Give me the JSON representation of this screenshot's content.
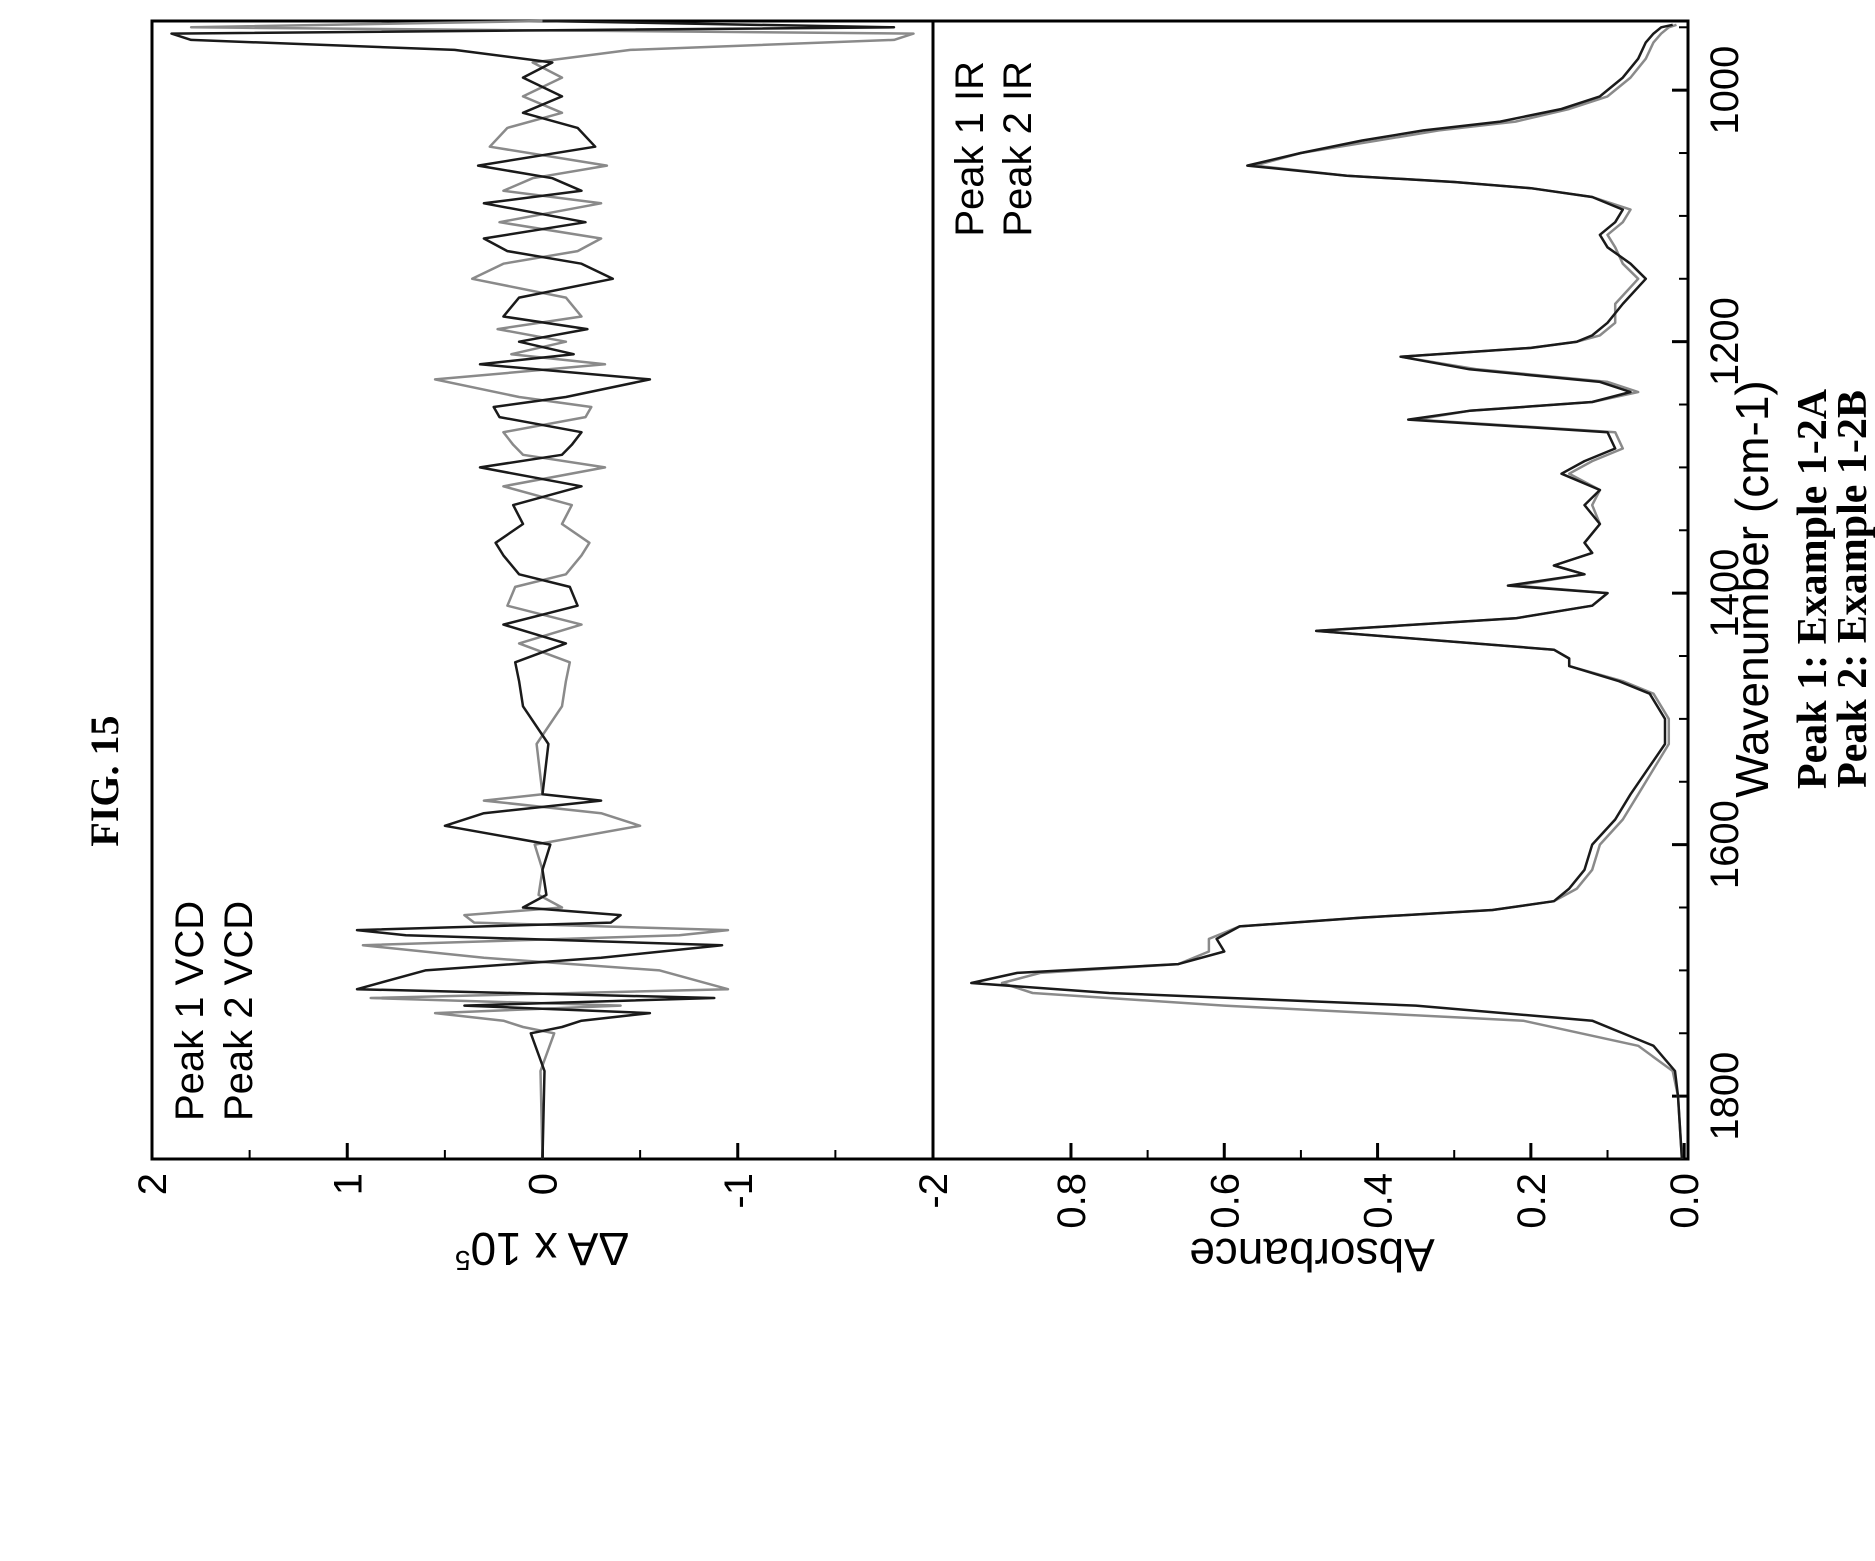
{
  "figure_label": "FIG. 15",
  "caption": {
    "line1": "Peak 1: Example 1-2A",
    "line2": "Peak 2: Example 1-2B"
  },
  "colors": {
    "peak1": "#8a8a8a",
    "peak2": "#1a1a1a",
    "axis": "#000000"
  },
  "chart_data": [
    {
      "type": "line",
      "panel": "VCD",
      "ylabel": "ΔA x 10",
      "ylabel_superscript": "5",
      "xlabel": "",
      "xlim": [
        1850,
        945
      ],
      "ylim": [
        -2,
        2
      ],
      "yticks": [
        2,
        1,
        0,
        -1,
        -2
      ],
      "ytick_labels": [
        "2",
        "1",
        "0",
        "-1",
        "-2"
      ],
      "legend_position": "top-left",
      "series": [
        {
          "name": "Peak 1 VCD",
          "x": [
            1850,
            1780,
            1750,
            1745,
            1740,
            1734,
            1728,
            1722,
            1715,
            1700,
            1690,
            1680,
            1672,
            1668,
            1662,
            1656,
            1650,
            1640,
            1620,
            1600,
            1585,
            1575,
            1565,
            1560,
            1520,
            1490,
            1470,
            1455,
            1440,
            1425,
            1410,
            1395,
            1385,
            1370,
            1360,
            1345,
            1330,
            1315,
            1300,
            1290,
            1282,
            1272,
            1260,
            1252,
            1244,
            1230,
            1218,
            1210,
            1200,
            1190,
            1180,
            1165,
            1150,
            1138,
            1128,
            1118,
            1105,
            1090,
            1080,
            1070,
            1060,
            1045,
            1030,
            1018,
            1005,
            990,
            978,
            968,
            960,
            955,
            950,
            945
          ],
          "y": [
            0,
            0.01,
            -0.06,
            0.1,
            0.2,
            0.55,
            -0.4,
            0.88,
            -0.95,
            -0.6,
            0.3,
            0.92,
            -0.7,
            -0.95,
            0.35,
            0.4,
            -0.1,
            0.02,
            0,
            0.04,
            -0.5,
            -0.3,
            0.3,
            0,
            0.03,
            -0.1,
            -0.12,
            -0.14,
            0.12,
            -0.2,
            0.18,
            0.14,
            -0.12,
            -0.2,
            -0.24,
            -0.1,
            -0.15,
            0.2,
            -0.32,
            0.1,
            0.15,
            0.2,
            -0.22,
            -0.25,
            0.12,
            0.55,
            -0.32,
            0.16,
            -0.12,
            0.23,
            -0.2,
            -0.12,
            0.36,
            0.2,
            -0.18,
            -0.3,
            0.22,
            -0.3,
            0.2,
            0.05,
            -0.33,
            0.27,
            0.18,
            -0.1,
            0.1,
            -0.1,
            0.05,
            -0.45,
            -1.8,
            -1.9,
            1.8,
            0
          ]
        },
        {
          "name": "Peak 2 VCD",
          "x": [
            1850,
            1780,
            1750,
            1745,
            1740,
            1734,
            1728,
            1722,
            1715,
            1700,
            1690,
            1680,
            1672,
            1668,
            1662,
            1656,
            1650,
            1640,
            1620,
            1600,
            1585,
            1575,
            1565,
            1560,
            1520,
            1490,
            1470,
            1455,
            1440,
            1425,
            1410,
            1395,
            1385,
            1370,
            1360,
            1345,
            1330,
            1315,
            1300,
            1290,
            1282,
            1272,
            1260,
            1252,
            1244,
            1230,
            1218,
            1210,
            1200,
            1190,
            1180,
            1165,
            1150,
            1138,
            1128,
            1118,
            1105,
            1090,
            1080,
            1070,
            1060,
            1045,
            1030,
            1018,
            1005,
            990,
            978,
            968,
            960,
            955,
            950,
            945
          ],
          "y": [
            0,
            -0.01,
            0.06,
            -0.1,
            -0.2,
            -0.55,
            0.4,
            -0.88,
            0.95,
            0.6,
            -0.3,
            -0.92,
            0.7,
            0.95,
            -0.35,
            -0.4,
            0.1,
            -0.02,
            0,
            -0.04,
            0.5,
            0.3,
            -0.3,
            0,
            -0.03,
            0.1,
            0.12,
            0.14,
            -0.12,
            0.2,
            -0.18,
            -0.14,
            0.12,
            0.2,
            0.24,
            0.1,
            0.15,
            -0.2,
            0.32,
            -0.1,
            -0.15,
            -0.2,
            0.22,
            0.25,
            -0.12,
            -0.55,
            0.32,
            -0.16,
            0.12,
            -0.23,
            0.2,
            0.12,
            -0.36,
            -0.2,
            0.18,
            0.3,
            -0.22,
            0.3,
            -0.2,
            -0.05,
            0.33,
            -0.27,
            -0.18,
            0.1,
            -0.1,
            0.1,
            -0.05,
            0.45,
            1.8,
            1.9,
            -1.8,
            0
          ]
        }
      ]
    },
    {
      "type": "line",
      "panel": "IR",
      "ylabel": "Absorbance",
      "xlabel": "Wavenumber (cm-1)",
      "xlim": [
        1850,
        945
      ],
      "ylim": [
        -0.005,
        0.98
      ],
      "xticks": [
        1800,
        1600,
        1400,
        1200,
        1000
      ],
      "xtick_labels": [
        "1800",
        "1600",
        "1400",
        "1200",
        "1000"
      ],
      "yticks": [
        0.0,
        0.2,
        0.4,
        0.6,
        0.8
      ],
      "ytick_labels": [
        "0.0",
        "0.2",
        "0.4",
        "0.6",
        "0.8"
      ],
      "legend_position": "top-right",
      "series": [
        {
          "name": "Peak 1 IR",
          "x": [
            1850,
            1800,
            1780,
            1760,
            1740,
            1728,
            1718,
            1710,
            1702,
            1695,
            1685,
            1675,
            1665,
            1658,
            1652,
            1645,
            1635,
            1620,
            1600,
            1580,
            1560,
            1520,
            1500,
            1480,
            1470,
            1458,
            1452,
            1445,
            1430,
            1420,
            1410,
            1400,
            1394,
            1385,
            1378,
            1368,
            1360,
            1345,
            1330,
            1318,
            1305,
            1295,
            1285,
            1272,
            1262,
            1255,
            1248,
            1240,
            1232,
            1222,
            1212,
            1205,
            1200,
            1195,
            1185,
            1170,
            1150,
            1138,
            1125,
            1115,
            1105,
            1095,
            1085,
            1078,
            1073,
            1068,
            1060,
            1050,
            1040,
            1032,
            1025,
            1015,
            1005,
            990,
            975,
            962,
            955,
            950,
            948
          ],
          "y": [
            0.003,
            0.008,
            0.015,
            0.06,
            0.21,
            0.6,
            0.85,
            0.89,
            0.84,
            0.66,
            0.62,
            0.62,
            0.58,
            0.42,
            0.25,
            0.17,
            0.14,
            0.12,
            0.11,
            0.08,
            0.06,
            0.02,
            0.02,
            0.04,
            0.08,
            0.15,
            0.15,
            0.17,
            0.48,
            0.22,
            0.12,
            0.1,
            0.22,
            0.13,
            0.17,
            0.12,
            0.13,
            0.11,
            0.12,
            0.11,
            0.15,
            0.12,
            0.08,
            0.09,
            0.35,
            0.28,
            0.12,
            0.06,
            0.1,
            0.27,
            0.37,
            0.2,
            0.14,
            0.11,
            0.09,
            0.09,
            0.06,
            0.08,
            0.09,
            0.1,
            0.08,
            0.07,
            0.12,
            0.2,
            0.3,
            0.44,
            0.56,
            0.5,
            0.4,
            0.32,
            0.22,
            0.15,
            0.1,
            0.07,
            0.05,
            0.04,
            0.03,
            0.02,
            0.01
          ]
        },
        {
          "name": "Peak 2 IR",
          "x": [
            1850,
            1800,
            1780,
            1760,
            1740,
            1728,
            1718,
            1710,
            1702,
            1695,
            1685,
            1675,
            1665,
            1658,
            1652,
            1645,
            1635,
            1620,
            1600,
            1580,
            1560,
            1520,
            1500,
            1480,
            1470,
            1458,
            1452,
            1445,
            1430,
            1420,
            1410,
            1400,
            1394,
            1385,
            1378,
            1368,
            1360,
            1345,
            1330,
            1318,
            1305,
            1295,
            1285,
            1272,
            1262,
            1255,
            1248,
            1240,
            1232,
            1222,
            1212,
            1205,
            1200,
            1195,
            1185,
            1170,
            1150,
            1138,
            1125,
            1115,
            1105,
            1095,
            1085,
            1078,
            1073,
            1068,
            1060,
            1050,
            1040,
            1032,
            1025,
            1015,
            1005,
            990,
            975,
            962,
            955,
            950,
            948
          ],
          "y": [
            0.003,
            0.008,
            0.012,
            0.04,
            0.12,
            0.35,
            0.75,
            0.93,
            0.87,
            0.66,
            0.6,
            0.61,
            0.58,
            0.42,
            0.25,
            0.17,
            0.15,
            0.13,
            0.12,
            0.09,
            0.07,
            0.025,
            0.025,
            0.045,
            0.085,
            0.15,
            0.15,
            0.17,
            0.48,
            0.22,
            0.12,
            0.1,
            0.23,
            0.13,
            0.17,
            0.12,
            0.13,
            0.11,
            0.13,
            0.11,
            0.16,
            0.13,
            0.09,
            0.1,
            0.36,
            0.28,
            0.12,
            0.07,
            0.11,
            0.28,
            0.37,
            0.2,
            0.14,
            0.12,
            0.1,
            0.08,
            0.05,
            0.07,
            0.1,
            0.11,
            0.09,
            0.08,
            0.12,
            0.2,
            0.3,
            0.44,
            0.57,
            0.5,
            0.42,
            0.34,
            0.24,
            0.16,
            0.11,
            0.08,
            0.06,
            0.05,
            0.04,
            0.03,
            0.015
          ]
        }
      ]
    }
  ]
}
